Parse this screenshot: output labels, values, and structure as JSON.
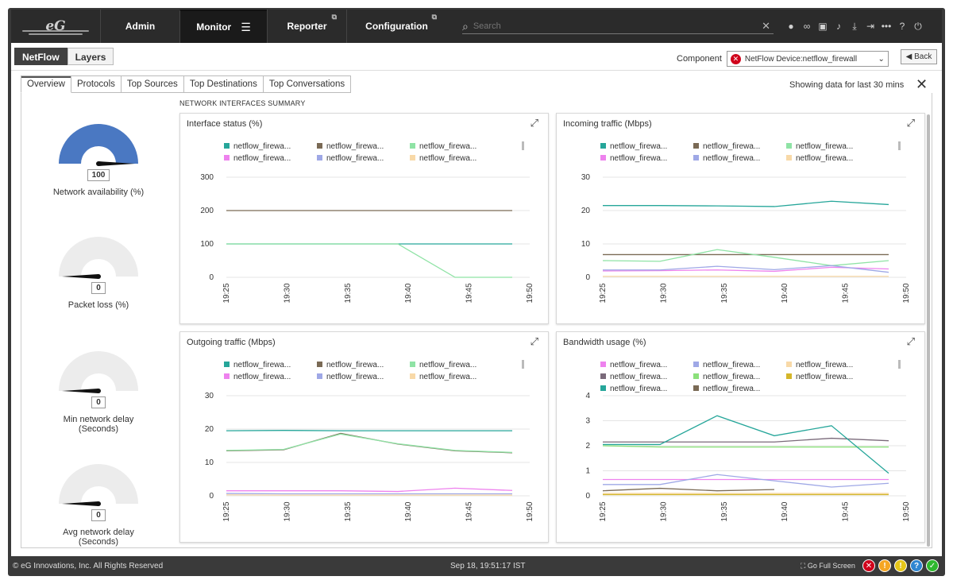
{
  "nav": {
    "logo": "eG",
    "items": [
      {
        "label": "Admin"
      },
      {
        "label": "Monitor"
      },
      {
        "label": "Reporter"
      },
      {
        "label": "Configuration"
      }
    ],
    "search_placeholder": "Search",
    "icons": [
      "user-icon",
      "link-icon",
      "report-icon",
      "bell-icon",
      "download-icon",
      "signin-icon",
      "more-icon",
      "help-icon",
      "power-icon"
    ]
  },
  "subtabs": [
    "NetFlow",
    "Layers"
  ],
  "component": {
    "label": "Component",
    "value": "NetFlow Device:netflow_firewall"
  },
  "back_label": "Back",
  "tabs": [
    "Overview",
    "Protocols",
    "Top Sources",
    "Top Destinations",
    "Top Conversations"
  ],
  "showing": "Showing data for last 30 mins",
  "summary_title": "NETWORK INTERFACES SUMMARY",
  "gauges": [
    {
      "label": "Network availability (%)",
      "value": "100",
      "fraction": 1.0
    },
    {
      "label": "Packet loss (%)",
      "value": "0",
      "fraction": 0
    },
    {
      "label": "Min network delay (Seconds)",
      "value": "0",
      "fraction": 0
    },
    {
      "label": "Avg network delay (Seconds)",
      "value": "0",
      "fraction": 0
    }
  ],
  "chart_data": [
    {
      "type": "line",
      "title": "Interface status (%)",
      "x": [
        "19:25",
        "19:30",
        "19:35",
        "19:40",
        "19:45",
        "19:50"
      ],
      "ylim": [
        0,
        300
      ],
      "yticks": [
        0,
        100,
        200,
        300
      ],
      "series": [
        {
          "name": "netflow_firewa...",
          "color": "#26a69a",
          "values": [
            100,
            100,
            100,
            100,
            100,
            100
          ]
        },
        {
          "name": "netflow_firewa...",
          "color": "#7a6a55",
          "values": [
            200,
            200,
            200,
            200,
            200,
            200
          ]
        },
        {
          "name": "netflow_firewa...",
          "color": "#8fe3a5",
          "values": [
            100,
            100,
            100,
            100,
            0,
            0
          ]
        },
        {
          "name": "netflow_firewa...",
          "color": "#ee82ee",
          "values": [
            null,
            null,
            null,
            null,
            null,
            null
          ]
        },
        {
          "name": "netflow_firewa...",
          "color": "#9fa8e6",
          "values": [
            null,
            null,
            null,
            null,
            null,
            null
          ]
        },
        {
          "name": "netflow_firewa...",
          "color": "#f8d9a8",
          "values": [
            null,
            null,
            null,
            null,
            null,
            null
          ]
        }
      ]
    },
    {
      "type": "line",
      "title": "Incoming traffic (Mbps)",
      "x": [
        "19:25",
        "19:30",
        "19:35",
        "19:40",
        "19:45",
        "19:50"
      ],
      "ylim": [
        0,
        30
      ],
      "yticks": [
        0,
        10,
        20,
        30
      ],
      "series": [
        {
          "name": "netflow_firewa...",
          "color": "#26a69a",
          "values": [
            21.5,
            21.5,
            21.4,
            21.2,
            22.8,
            21.8
          ]
        },
        {
          "name": "netflow_firewa...",
          "color": "#7a6a55",
          "values": [
            6.8,
            6.8,
            6.8,
            6.8,
            6.8,
            6.8
          ]
        },
        {
          "name": "netflow_firewa...",
          "color": "#8fe3a5",
          "values": [
            5.0,
            4.8,
            8.3,
            6.0,
            3.5,
            5.0
          ]
        },
        {
          "name": "netflow_firewa...",
          "color": "#ee82ee",
          "values": [
            1.9,
            2.0,
            2.2,
            1.8,
            3.0,
            2.5
          ]
        },
        {
          "name": "netflow_firewa...",
          "color": "#9fa8e6",
          "values": [
            2.2,
            2.2,
            3.3,
            2.3,
            3.5,
            1.5
          ]
        },
        {
          "name": "netflow_firewa...",
          "color": "#f8d9a8",
          "values": [
            0.3,
            0.3,
            0.3,
            0.3,
            0.3,
            0.3
          ]
        }
      ]
    },
    {
      "type": "line",
      "title": "Outgoing traffic (Mbps)",
      "x": [
        "19:25",
        "19:30",
        "19:35",
        "19:40",
        "19:45",
        "19:50"
      ],
      "ylim": [
        0,
        30
      ],
      "yticks": [
        0,
        10,
        20,
        30
      ],
      "series": [
        {
          "name": "netflow_firewa...",
          "color": "#26a69a",
          "values": [
            19.5,
            19.6,
            19.5,
            19.5,
            19.5,
            19.5
          ]
        },
        {
          "name": "netflow_firewa...",
          "color": "#7a6a55",
          "values": [
            13.5,
            13.8,
            18.7,
            15.5,
            13.5,
            12.9
          ]
        },
        {
          "name": "netflow_firewa...",
          "color": "#8fe3a5",
          "values": [
            13.6,
            13.9,
            18.5,
            15.6,
            13.6,
            13.0
          ]
        },
        {
          "name": "netflow_firewa...",
          "color": "#ee82ee",
          "values": [
            1.5,
            1.5,
            1.5,
            1.3,
            2.3,
            1.6
          ]
        },
        {
          "name": "netflow_firewa...",
          "color": "#9fa8e6",
          "values": [
            0.7,
            0.6,
            0.6,
            0.6,
            0.6,
            0.6
          ]
        },
        {
          "name": "netflow_firewa...",
          "color": "#f8d9a8",
          "values": [
            0.3,
            0.2,
            0.2,
            0.2,
            0.2,
            0.2
          ]
        }
      ]
    },
    {
      "type": "line",
      "title": "Bandwidth usage (%)",
      "x": [
        "19:25",
        "19:30",
        "19:35",
        "19:40",
        "19:45",
        "19:50"
      ],
      "ylim": [
        0,
        4
      ],
      "yticks": [
        0,
        1,
        2,
        3,
        4
      ],
      "series": [
        {
          "name": "netflow_firewa...",
          "color": "#ee82ee",
          "values": [
            0.65,
            0.65,
            0.65,
            0.65,
            0.65,
            0.65
          ]
        },
        {
          "name": "netflow_firewa...",
          "color": "#9fa8e6",
          "values": [
            0.45,
            0.45,
            0.85,
            0.6,
            0.35,
            0.5
          ]
        },
        {
          "name": "netflow_firewa...",
          "color": "#f8d9a8",
          "values": [
            0.1,
            0.1,
            0.1,
            0.1,
            0.1,
            0.1
          ]
        },
        {
          "name": "netflow_firewa...",
          "color": "#7a6a7a",
          "values": [
            2.15,
            2.15,
            2.15,
            2.15,
            2.3,
            2.2
          ]
        },
        {
          "name": "netflow_firewa...",
          "color": "#8be07a",
          "values": [
            2.0,
            1.95,
            1.95,
            1.95,
            1.95,
            1.95
          ]
        },
        {
          "name": "netflow_firewa...",
          "color": "#d4b62a",
          "values": [
            0.05,
            0.05,
            0.05,
            0.05,
            0.05,
            0.05
          ]
        },
        {
          "name": "netflow_firewa...",
          "color": "#26a69a",
          "values": [
            2.05,
            2.05,
            3.2,
            2.4,
            2.8,
            0.9
          ]
        },
        {
          "name": "netflow_firewa...",
          "color": "#7a6a55",
          "values": [
            0.2,
            0.3,
            0.2,
            0.25,
            null,
            null
          ]
        }
      ]
    }
  ],
  "footer": {
    "copyright": "© eG Innovations, Inc. All Rights Reserved",
    "time": "Sep 18, 19:51:17 IST",
    "fullscreen": "Go Full Screen",
    "status_icons": [
      {
        "name": "critical-icon",
        "glyph": "✕",
        "color": "#d0021b"
      },
      {
        "name": "major-icon",
        "glyph": "!",
        "color": "#f5a623"
      },
      {
        "name": "minor-icon",
        "glyph": "!",
        "color": "#e6c619"
      },
      {
        "name": "unknown-icon",
        "glyph": "?",
        "color": "#2f86d1"
      },
      {
        "name": "normal-icon",
        "glyph": "✓",
        "color": "#2eb82e"
      }
    ]
  }
}
